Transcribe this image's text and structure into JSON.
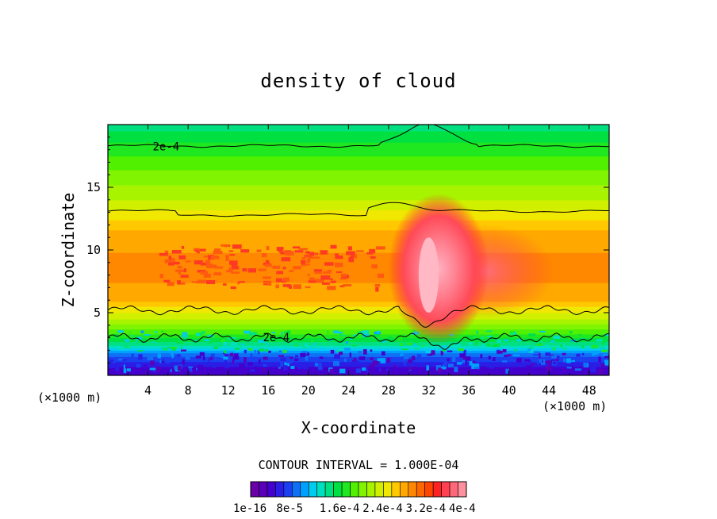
{
  "chart_data": {
    "type": "heatmap",
    "title": "density of cloud",
    "xlabel": "X-coordinate",
    "ylabel": "Z-coordinate",
    "x_unit_left": "(×1000 m)",
    "x_unit_right": "(×1000 m)",
    "xlim": [
      0,
      50
    ],
    "ylim": [
      0,
      20
    ],
    "x_ticks": [
      4,
      8,
      12,
      16,
      20,
      24,
      28,
      32,
      36,
      40,
      44,
      48
    ],
    "x_tick_labels": [
      "4",
      "8",
      "12",
      "16",
      "20",
      "24",
      "28",
      "32",
      "36",
      "40",
      "44",
      "48"
    ],
    "y_ticks": [
      5,
      10,
      15
    ],
    "y_tick_labels": [
      "5",
      "10",
      "15"
    ],
    "contour_interval_text": "CONTOUR INTERVAL = 1.000E-04",
    "contour_labels": [
      "2e-4",
      "2e-4"
    ],
    "colorbar_labels": [
      "1e-16",
      "8e-5",
      "1.6e-4",
      "2.4e-4",
      "3.2e-4",
      "4e-4"
    ],
    "colorbar_colors": [
      "#6a00a8",
      "#5a00b8",
      "#4400cc",
      "#2a1ee6",
      "#1a40f0",
      "#1070f5",
      "#00a0ff",
      "#00ccee",
      "#00e0c0",
      "#00e080",
      "#00e040",
      "#20e820",
      "#50f000",
      "#80f400",
      "#a8f400",
      "#d0f000",
      "#f0e800",
      "#ffc800",
      "#ffa800",
      "#ff8800",
      "#ff6600",
      "#ff4400",
      "#ff2222",
      "#ff4050",
      "#ff6878",
      "#ff90a0"
    ],
    "density_profile": [
      {
        "z": 0.5,
        "value": 4e-05
      },
      {
        "z": 1.5,
        "value": 8e-05
      },
      {
        "z": 2.0,
        "value": 0.00011
      },
      {
        "z": 2.5,
        "value": 0.00015
      },
      {
        "z": 3.2,
        "value": 0.00019
      },
      {
        "z": 4.5,
        "value": 0.00024
      },
      {
        "z": 6.0,
        "value": 0.00029
      },
      {
        "z": 8.0,
        "value": 0.00031
      },
      {
        "z": 11.0,
        "value": 0.0003
      },
      {
        "z": 12.5,
        "value": 0.00027
      },
      {
        "z": 14.0,
        "value": 0.00024
      },
      {
        "z": 15.5,
        "value": 0.00022
      },
      {
        "z": 17.0,
        "value": 0.0002
      },
      {
        "z": 19.0,
        "value": 0.00017
      },
      {
        "z": 20.0,
        "value": 0.00015
      }
    ],
    "maximum_region": {
      "x": [
        30,
        44
      ],
      "z": [
        4.5,
        12
      ],
      "peak_x": 32,
      "peak_z": 8.5,
      "peak_value": 0.0004
    }
  }
}
